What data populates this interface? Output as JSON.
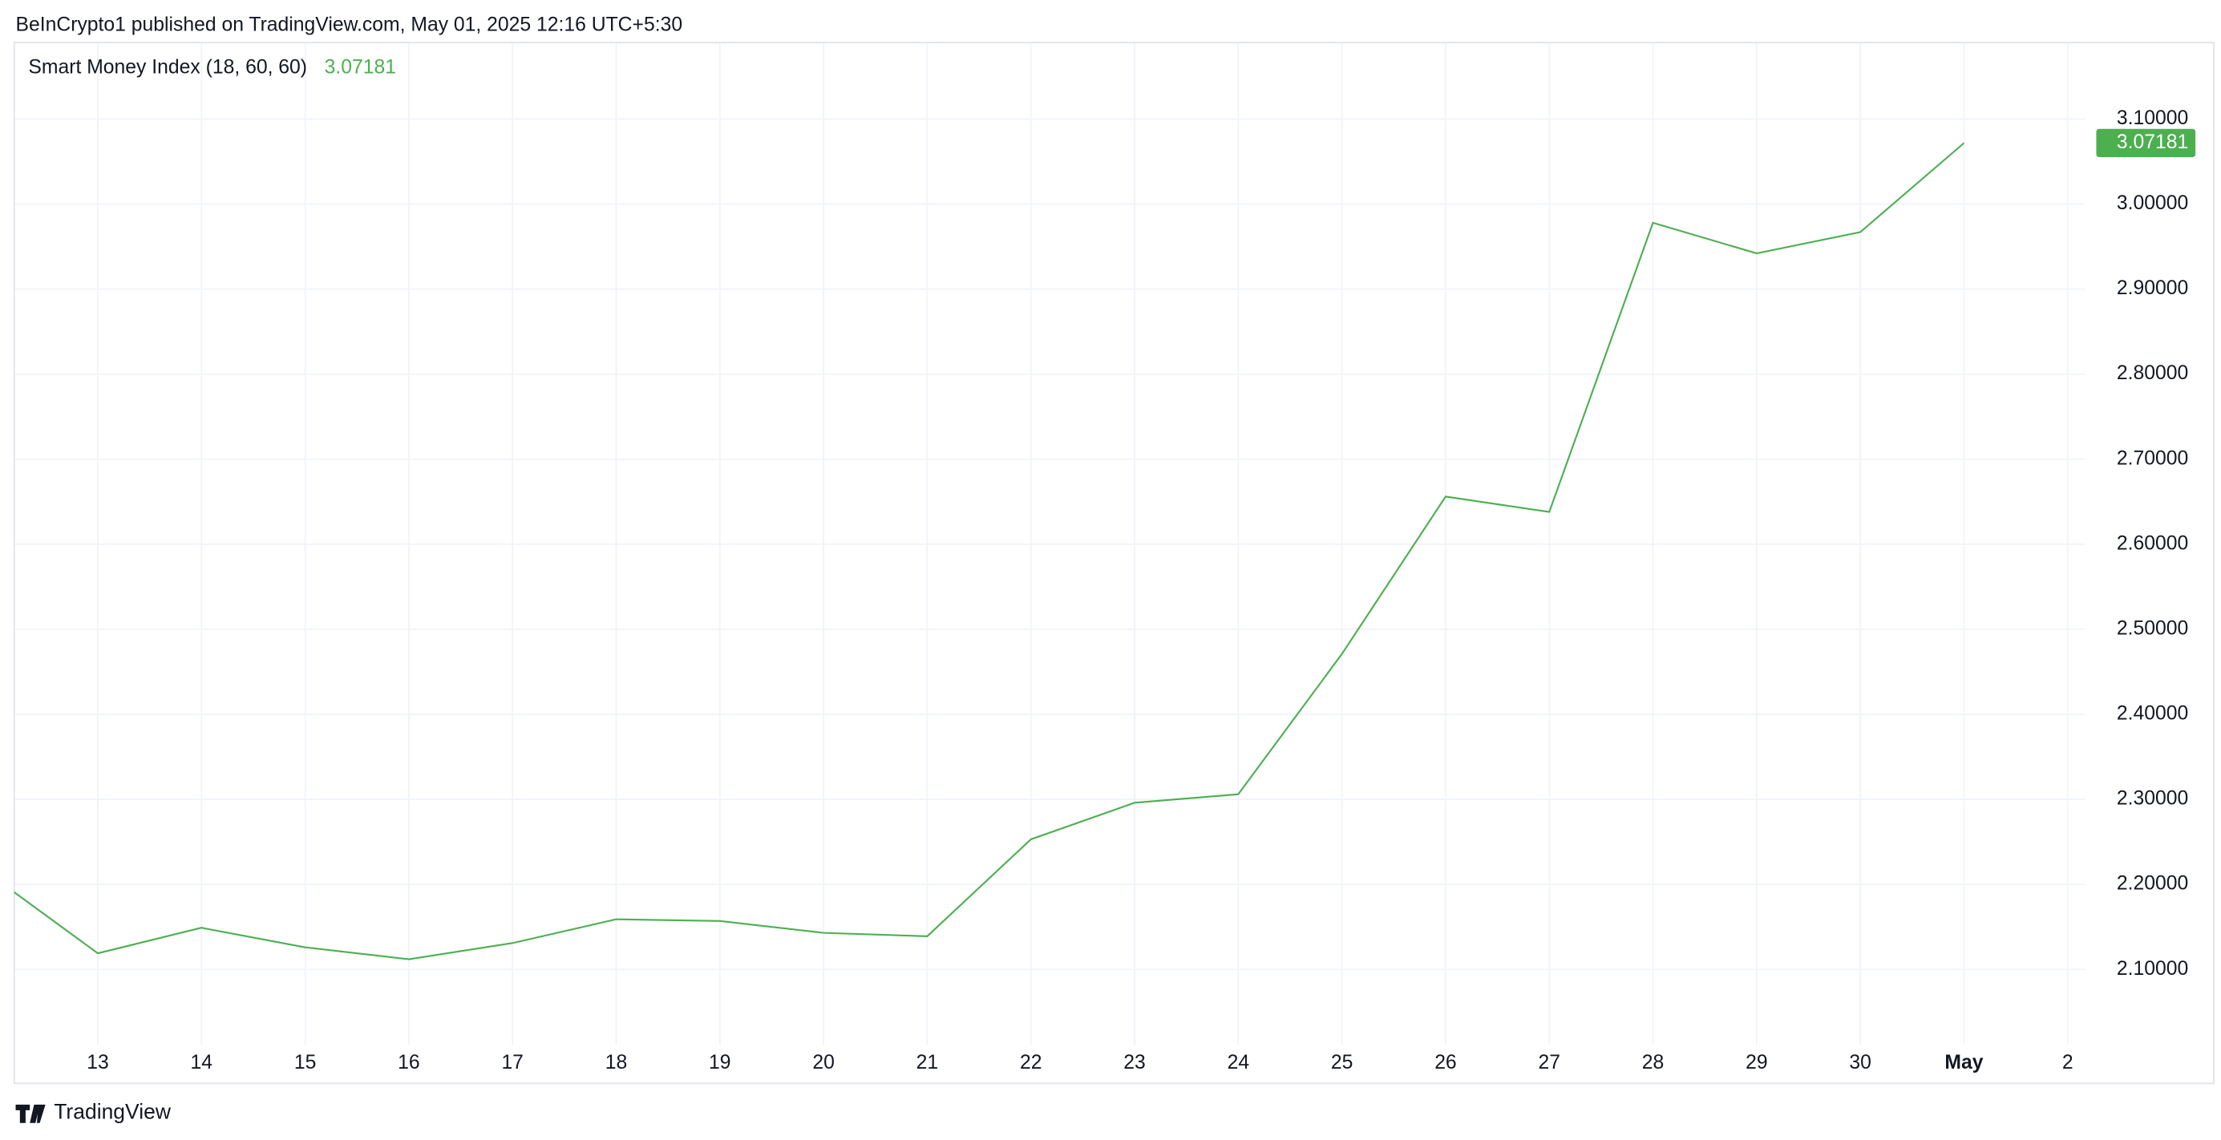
{
  "header": {
    "text": "BeInCrypto1 published on TradingView.com, May 01, 2025 12:16 UTC+5:30"
  },
  "chart_data": {
    "type": "line",
    "categories": [
      null,
      "13",
      "14",
      "15",
      "16",
      "17",
      "18",
      "19",
      "20",
      "21",
      "22",
      "23",
      "24",
      "25",
      "26",
      "27",
      "28",
      "29",
      "30",
      "May",
      "2"
    ],
    "series": [
      {
        "name": "Smart Money Index (18, 60, 60)",
        "color": "#4caf50",
        "values": [
          2.208,
          2.119,
          2.149,
          2.126,
          2.112,
          2.131,
          2.159,
          2.157,
          2.143,
          2.139,
          2.253,
          2.296,
          2.306,
          2.471,
          2.656,
          2.638,
          2.978,
          2.942,
          2.967,
          3.07181,
          null
        ]
      }
    ],
    "ylim": [
      2.011,
      3.19
    ],
    "yticks": [
      {
        "value": 2.1,
        "label": "2.10000"
      },
      {
        "value": 2.2,
        "label": "2.20000"
      },
      {
        "value": 2.3,
        "label": "2.30000"
      },
      {
        "value": 2.4,
        "label": "2.40000"
      },
      {
        "value": 2.5,
        "label": "2.50000"
      },
      {
        "value": 2.6,
        "label": "2.60000"
      },
      {
        "value": 2.7,
        "label": "2.70000"
      },
      {
        "value": 2.8,
        "label": "2.80000"
      },
      {
        "value": 2.9,
        "label": "2.90000"
      },
      {
        "value": 3.0,
        "label": "3.00000"
      },
      {
        "value": 3.1,
        "label": "3.10000"
      }
    ],
    "grid": true
  },
  "footer": {
    "brand": "TradingView"
  }
}
